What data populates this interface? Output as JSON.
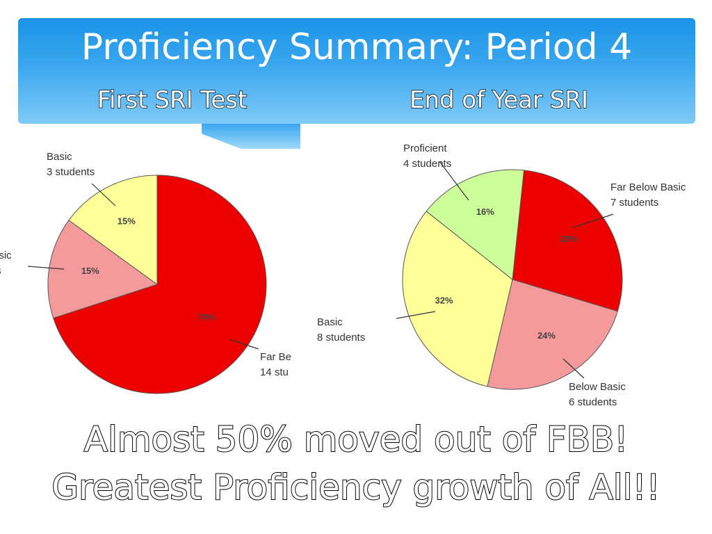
{
  "slide": {
    "title": "Proficiency Summary: Period 4",
    "left_heading": "First SRI Test",
    "right_heading": "End of Year SRI",
    "caption_line1": "Almost 50% moved out of FBB!",
    "caption_line2": "Greatest Proficiency growth of All!!"
  },
  "colors": {
    "banner": "#1b93e6",
    "far_below_basic": "#ee0000",
    "below_basic": "#f59a9a",
    "basic": "#ffff99",
    "proficient": "#ccff99"
  },
  "chart_data": [
    {
      "type": "pie",
      "title": "First SRI Test",
      "slices": [
        {
          "label": "Far Be",
          "sublabel": "14 stu",
          "pct_label": "70%",
          "value": 70,
          "color": "#ee0000"
        },
        {
          "label": "asic",
          "sublabel": "ts",
          "pct_label": "15%",
          "value": 15,
          "color": "#f59a9a"
        },
        {
          "label": "Basic",
          "sublabel": "3 students",
          "pct_label": "15%",
          "value": 15,
          "color": "#ffff99"
        }
      ]
    },
    {
      "type": "pie",
      "title": "End of Year SRI",
      "slices": [
        {
          "label": "Far Below Basic",
          "sublabel": "7 students",
          "pct_label": "28%",
          "value": 28,
          "color": "#ee0000"
        },
        {
          "label": "Below Basic",
          "sublabel": "6 students",
          "pct_label": "24%",
          "value": 24,
          "color": "#f59a9a"
        },
        {
          "label": "Basic",
          "sublabel": "8 students",
          "pct_label": "32%",
          "value": 32,
          "color": "#ffff99"
        },
        {
          "label": "Proficient",
          "sublabel": "4 students",
          "pct_label": "16%",
          "value": 16,
          "color": "#ccff99"
        }
      ]
    }
  ]
}
